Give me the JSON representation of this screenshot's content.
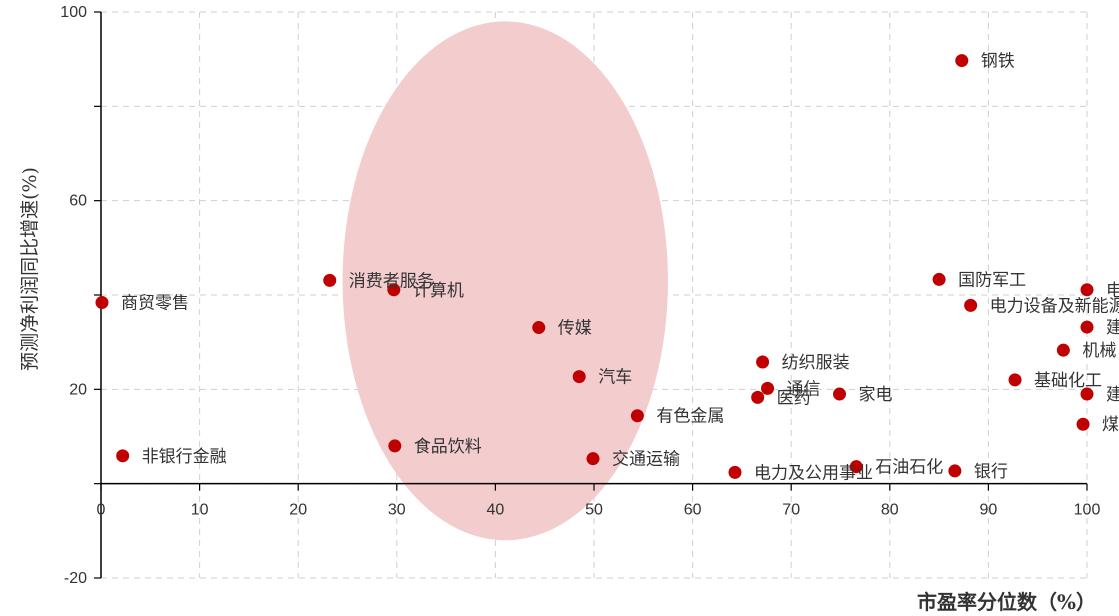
{
  "chart_data": {
    "type": "scatter",
    "xlabel": "市盈率分位数（%）",
    "ylabel": "预测净利润同比增速(%)",
    "xlim": [
      0,
      100
    ],
    "ylim": [
      -20,
      100
    ],
    "x_ticks": [
      "0",
      "10",
      "20",
      "30",
      "40",
      "50",
      "60",
      "70",
      "80",
      "90",
      "100"
    ],
    "y_ticks": [
      "100",
      "60",
      "20",
      "-20"
    ],
    "grid": true,
    "point_color": "#C00000",
    "highlight_ellipse": {
      "center_x": 41,
      "center_y": 43,
      "radius_x": 16.5,
      "radius_y": 55,
      "color": "#F2C9CB"
    },
    "points": [
      {
        "name": "钢铁",
        "x": 87.3,
        "y": 89.7
      },
      {
        "name": "消费者服务",
        "x": 23.2,
        "y": 43.1
      },
      {
        "name": "计算机",
        "x": 29.7,
        "y": 41.1
      },
      {
        "name": "商贸零售",
        "x": 0.1,
        "y": 38.4
      },
      {
        "name": "传媒",
        "x": 44.4,
        "y": 33.1
      },
      {
        "name": "国防军工",
        "x": 85.0,
        "y": 43.3
      },
      {
        "name": "电子",
        "x": 100.0,
        "y": 41.1
      },
      {
        "name": "电力设备及新能源",
        "x": 88.2,
        "y": 37.8
      },
      {
        "name": "建材",
        "x": 100.0,
        "y": 33.2
      },
      {
        "name": "机械",
        "x": 97.6,
        "y": 28.3
      },
      {
        "name": "纺织服装",
        "x": 67.1,
        "y": 25.8
      },
      {
        "name": "汽车",
        "x": 48.5,
        "y": 22.7
      },
      {
        "name": "基础化工",
        "x": 92.7,
        "y": 22.0
      },
      {
        "name": "通信",
        "x": 67.6,
        "y": 20.2
      },
      {
        "name": "医药",
        "x": 66.6,
        "y": 18.3
      },
      {
        "name": "家电",
        "x": 74.9,
        "y": 19.0
      },
      {
        "name": "建筑",
        "x": 100.0,
        "y": 19.0
      },
      {
        "name": "有色金属",
        "x": 54.4,
        "y": 14.4
      },
      {
        "name": "煤炭",
        "x": 99.6,
        "y": 12.6
      },
      {
        "name": "食品饮料",
        "x": 29.8,
        "y": 8.0
      },
      {
        "name": "非银行金融",
        "x": 2.2,
        "y": 5.9
      },
      {
        "name": "交通运输",
        "x": 49.9,
        "y": 5.3
      },
      {
        "name": "电力及公用事业",
        "x": 64.3,
        "y": 2.4
      },
      {
        "name": "石油石化",
        "x": 76.6,
        "y": 3.6
      },
      {
        "name": "银行",
        "x": 86.6,
        "y": 2.7
      }
    ]
  }
}
